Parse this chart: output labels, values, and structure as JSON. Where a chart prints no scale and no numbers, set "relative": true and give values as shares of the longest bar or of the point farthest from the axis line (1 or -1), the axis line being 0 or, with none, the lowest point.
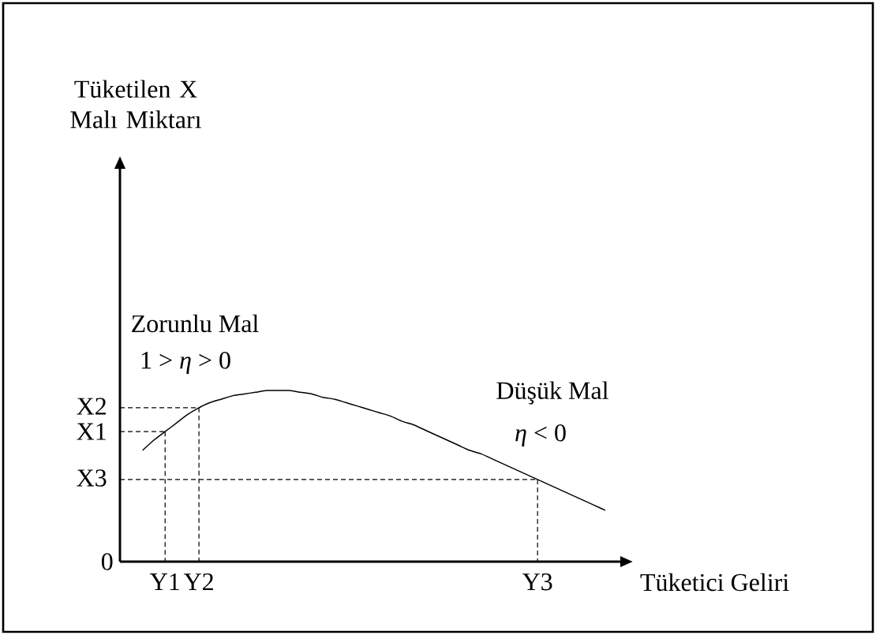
{
  "chart_data": {
    "type": "line",
    "relative": true,
    "xlabel": "Tüketici Geliri",
    "categories": [
      null,
      null,
      null,
      null,
      "Y1",
      null,
      null,
      "Y2",
      null,
      null,
      null,
      null,
      null,
      null,
      null,
      null,
      null,
      null,
      null,
      null,
      null,
      null,
      null,
      null,
      null,
      null,
      null,
      null,
      null,
      null,
      null,
      null,
      null,
      null,
      null,
      null,
      null,
      "Y3",
      null,
      null,
      null,
      null,
      null,
      null,
      null,
      null
    ],
    "marker": "none",
    "series": [
      {
        "color": "#000000",
        "line_style": "solid",
        "values": [
          null,
          null,
          0.65,
          0.71,
          0.76,
          0.81,
          0.86,
          0.9,
          0.93,
          0.95,
          0.97,
          0.98,
          0.99,
          1.0,
          1.0,
          1.0,
          0.99,
          0.98,
          0.96,
          0.95,
          0.93,
          0.91,
          0.89,
          0.87,
          0.85,
          0.82,
          0.8,
          0.77,
          0.74,
          0.71,
          0.68,
          0.65,
          0.63,
          0.6,
          0.57,
          0.54,
          0.51,
          0.48,
          0.45,
          0.42,
          0.39,
          0.36,
          0.33,
          0.3,
          null,
          null
        ]
      },
      {
        "color": "#000000",
        "line_style": "dashed",
        "values": [
          0.76,
          0.76,
          0.76,
          0.76,
          0.76,
          null,
          null,
          null,
          null,
          null,
          null,
          null,
          null,
          null,
          null,
          null,
          null,
          null,
          null,
          null,
          null,
          null,
          null,
          null,
          null,
          null,
          null,
          null,
          null,
          null,
          null,
          null,
          null,
          null,
          null,
          null,
          null,
          null,
          null,
          null,
          null,
          null,
          null,
          null,
          null,
          null
        ]
      },
      {
        "color": "#000000",
        "line_style": "dashed",
        "values": [
          0.9,
          0.9,
          0.9,
          0.9,
          0.9,
          0.9,
          0.9,
          0.9,
          null,
          null,
          null,
          null,
          null,
          null,
          null,
          null,
          null,
          null,
          null,
          null,
          null,
          null,
          null,
          null,
          null,
          null,
          null,
          null,
          null,
          null,
          null,
          null,
          null,
          null,
          null,
          null,
          null,
          null,
          null,
          null,
          null,
          null,
          null,
          null,
          null,
          null
        ]
      },
      {
        "color": "#000000",
        "line_style": "dashed",
        "values": [
          0.48,
          0.48,
          0.48,
          0.48,
          0.48,
          0.48,
          0.48,
          0.48,
          0.48,
          0.48,
          0.48,
          0.48,
          0.48,
          0.48,
          0.48,
          0.48,
          0.48,
          0.48,
          0.48,
          0.48,
          0.48,
          0.48,
          0.48,
          0.48,
          0.48,
          0.48,
          0.48,
          0.48,
          0.48,
          0.48,
          0.48,
          0.48,
          0.48,
          0.48,
          0.48,
          0.48,
          0.48,
          0.48,
          null,
          null,
          null,
          null,
          null,
          null,
          null,
          null
        ]
      },
      {
        "color": "#000000",
        "line_style": "dashed",
        "x": [
          "Y1",
          "Y1"
        ],
        "values": [
          0.76,
          0
        ]
      },
      {
        "color": "#000000",
        "line_style": "dashed",
        "x": [
          "Y2",
          "Y2"
        ],
        "values": [
          0.9,
          0
        ]
      },
      {
        "color": "#000000",
        "line_style": "dashed",
        "x": [
          "Y3",
          "Y3"
        ],
        "values": [
          0.48,
          0
        ]
      }
    ],
    "annotations": [
      "0",
      "X1",
      "X2",
      "X3",
      "Zorunlu Mal",
      "1 > *η* > 0",
      "Düşük Mal",
      "*η* < 0",
      "Tüketilen X Malı Miktarı"
    ]
  }
}
